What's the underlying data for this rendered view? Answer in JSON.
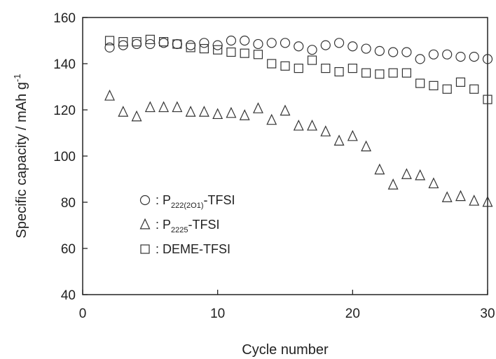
{
  "chart_data": {
    "type": "scatter",
    "xlabel": "Cycle number",
    "ylabel": "Specific capacity / mAh g",
    "ylabel_superscript": "-1",
    "xlim": [
      0,
      30
    ],
    "ylim": [
      40,
      160
    ],
    "x_ticks": [
      "0",
      "10",
      "20",
      "30"
    ],
    "y_ticks": [
      "40",
      "60",
      "80",
      "100",
      "120",
      "140",
      "160"
    ],
    "grid": false,
    "legend_position": "lower-left inside",
    "series": [
      {
        "name": "P222(2O1)-TFSI",
        "marker": "circle",
        "legend": {
          "prefix": ": P",
          "sub": "222(2O1)",
          "suffix": "-TFSI"
        },
        "x": [
          2,
          3,
          4,
          5,
          6,
          7,
          8,
          9,
          10,
          11,
          12,
          13,
          14,
          15,
          16,
          17,
          18,
          19,
          20,
          21,
          22,
          23,
          24,
          25,
          26,
          27,
          28,
          29,
          30
        ],
        "y": [
          147,
          148,
          148.5,
          148.5,
          149,
          148.5,
          148,
          149,
          148,
          150,
          150,
          148.5,
          149,
          149,
          147.5,
          146,
          148,
          149,
          147.5,
          146.5,
          145.5,
          145,
          145,
          142,
          144,
          144,
          143,
          143,
          142
        ]
      },
      {
        "name": "P2225-TFSI",
        "marker": "triangle",
        "legend": {
          "prefix": ": P",
          "sub": "2225",
          "suffix": "-TFSI"
        },
        "x": [
          2,
          3,
          4,
          5,
          6,
          7,
          8,
          9,
          10,
          11,
          12,
          13,
          14,
          15,
          16,
          17,
          18,
          19,
          20,
          21,
          22,
          23,
          24,
          25,
          26,
          27,
          28,
          29,
          30
        ],
        "y": [
          126,
          119,
          117,
          121,
          121,
          121,
          119,
          119,
          118,
          118.5,
          117.5,
          120.5,
          115.5,
          119.5,
          113,
          113,
          110.5,
          106.5,
          108.5,
          104,
          94,
          87.5,
          92,
          91.5,
          88,
          82,
          82.5,
          80.5,
          80
        ]
      },
      {
        "name": "DEME-TFSI",
        "marker": "square",
        "legend": {
          "prefix": ": DEME-TFSI",
          "sub": "",
          "suffix": ""
        },
        "x": [
          2,
          3,
          4,
          5,
          6,
          7,
          8,
          9,
          10,
          11,
          12,
          13,
          14,
          15,
          16,
          17,
          18,
          19,
          20,
          21,
          22,
          23,
          24,
          25,
          26,
          27,
          28,
          29,
          30
        ],
        "y": [
          150,
          149.5,
          149.5,
          150.5,
          149.5,
          148.5,
          147,
          146.5,
          146,
          145,
          144.5,
          144,
          140,
          139,
          138,
          141.5,
          138,
          136.5,
          138,
          136,
          135.5,
          136,
          136,
          131.5,
          130.5,
          129,
          132,
          129,
          124.5
        ]
      }
    ]
  }
}
